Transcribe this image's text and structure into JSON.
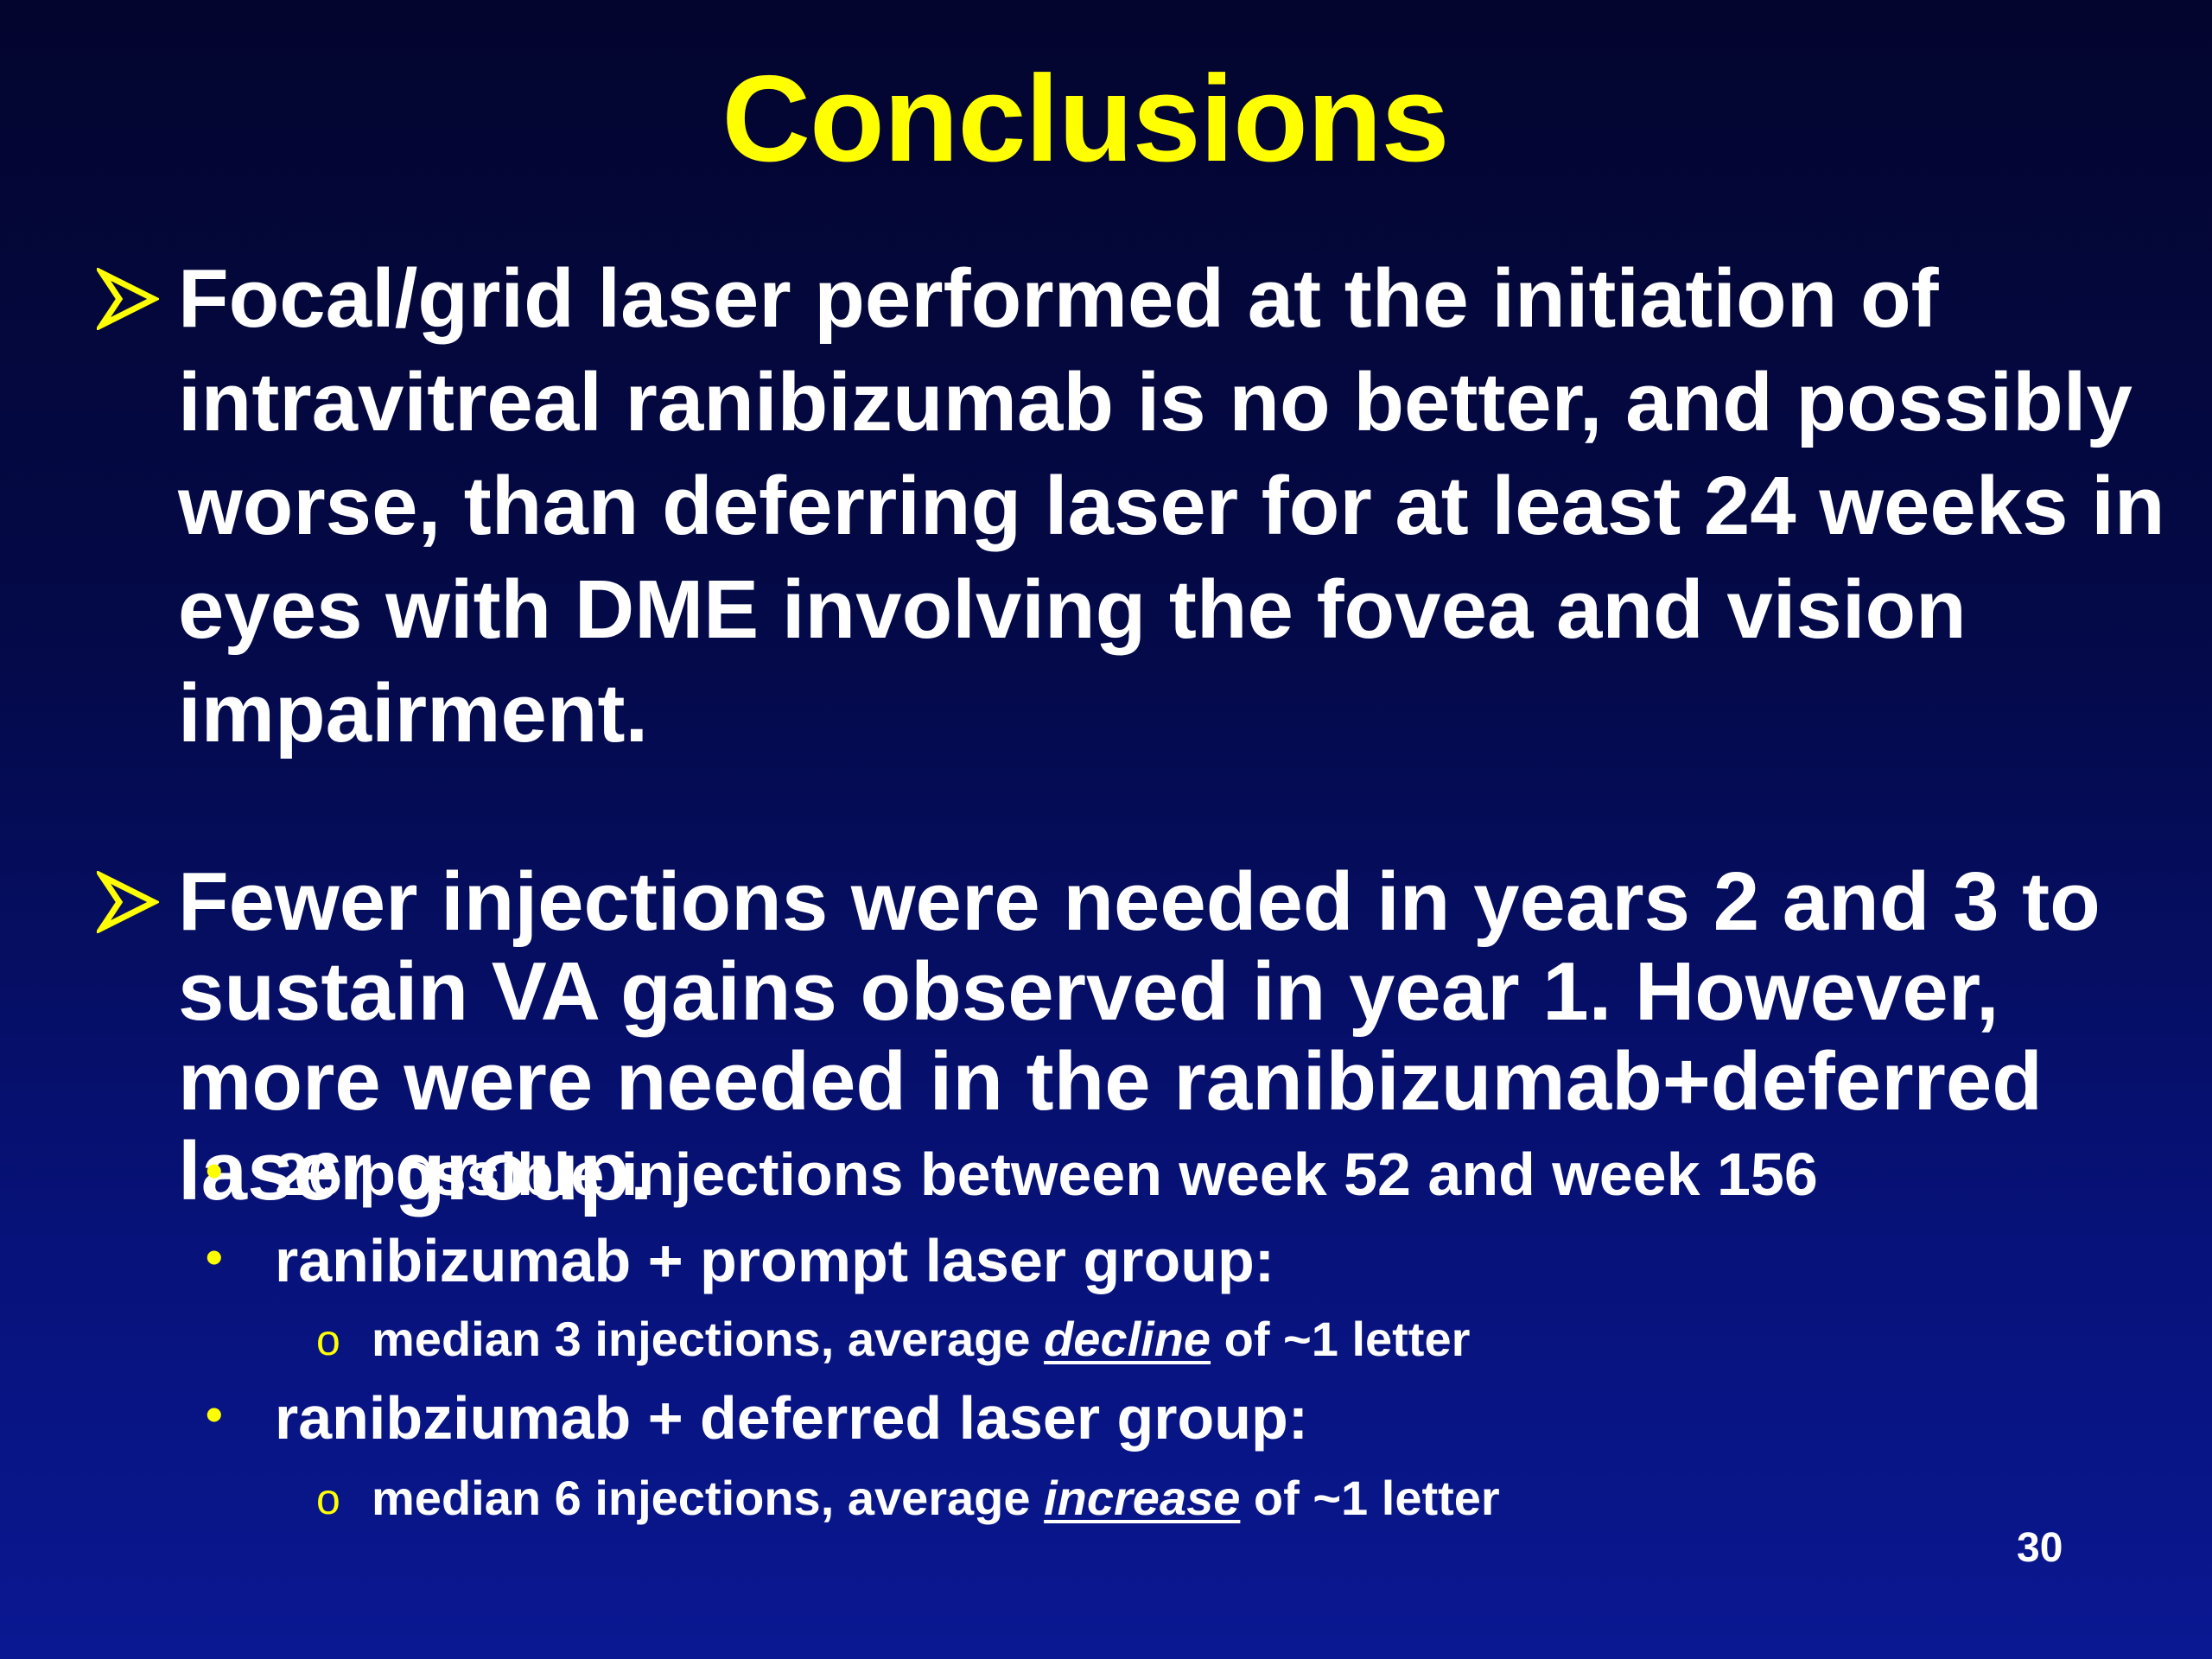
{
  "slide": {
    "title": "Conclusions",
    "bullets": [
      {
        "marker_icon": "arrow-bullet-icon",
        "text": "Focal/grid laser performed at the initiation of intravitreal ranibizumab is no better, and possibly worse, than deferring laser for at least 24 weeks in eyes with DME involving the fovea and vision impairment."
      },
      {
        "marker_icon": "arrow-bullet-icon",
        "text": "Fewer injections were needed in years 2 and 3 to sustain VA gains observed in year 1.  However, more were needed in the ranibizumab+deferred laser group.",
        "sub_items": [
          {
            "marker": "•",
            "text": "26 possible injections between week 52 and week 156"
          },
          {
            "marker": "•",
            "text": "ranibizumab + prompt laser group:",
            "sub_items": [
              {
                "marker": "o",
                "prefix": "median 3 injections, average ",
                "emphasis": "decline",
                "suffix": " of ~1 letter"
              }
            ]
          },
          {
            "marker": "•",
            "text": "ranibziumab + deferred laser group:",
            "sub_items": [
              {
                "marker": "o",
                "prefix": "median 6 injections, average ",
                "emphasis": "increase",
                "suffix": " of ~1 letter"
              }
            ]
          }
        ]
      }
    ],
    "page_number": "30"
  },
  "colors": {
    "title": "#ffff00",
    "text": "#ffffff",
    "markers": "#ffff00",
    "background_top": "#03052e",
    "background_bottom": "#0a1892"
  }
}
